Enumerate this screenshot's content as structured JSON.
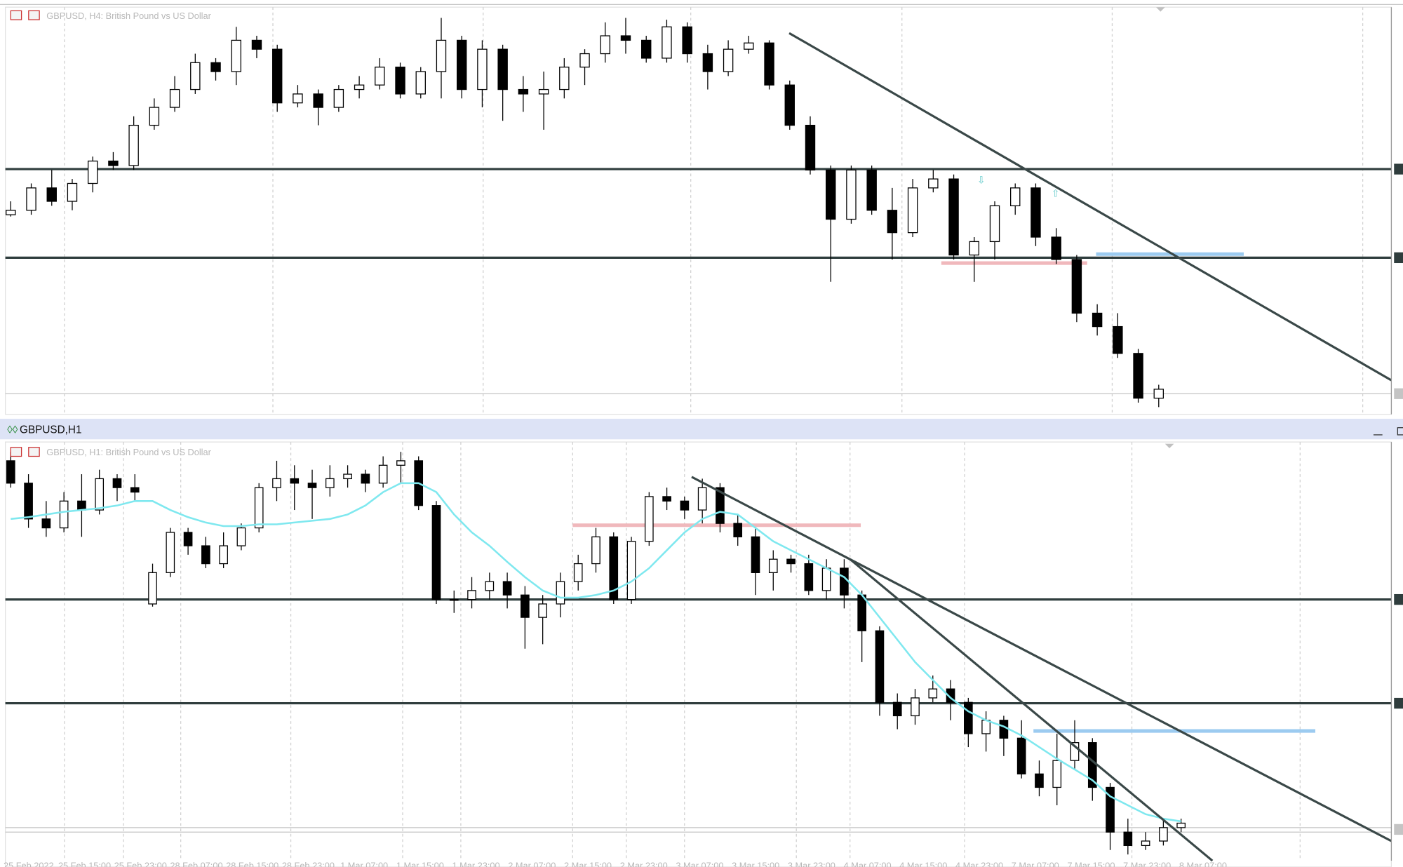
{
  "chart_data": [
    {
      "type": "candlestick",
      "title": "GBPUSD, H4:  British Pound vs US Dollar",
      "up_color": "#ffffff",
      "down_color": "#000000",
      "ylim": [
        1.3,
        1.345
      ],
      "open": [
        1.322,
        1.3225,
        1.325,
        1.3235,
        1.3255,
        1.328,
        1.3275,
        1.332,
        1.334,
        1.336,
        1.339,
        1.338,
        1.3415,
        1.3405,
        1.3345,
        1.3355,
        1.334,
        1.336,
        1.3365,
        1.3385,
        1.3355,
        1.338,
        1.3415,
        1.336,
        1.3405,
        1.336,
        1.3355,
        1.336,
        1.3385,
        1.34,
        1.342,
        1.3415,
        1.3395,
        1.343,
        1.34,
        1.338,
        1.3405,
        1.3412,
        1.3365,
        1.332,
        1.327,
        1.3215,
        1.327,
        1.3225,
        1.32,
        1.325,
        1.326,
        1.3175,
        1.319,
        1.323,
        1.325,
        1.3195,
        1.317,
        1.311,
        1.3095,
        1.3065,
        1.3015
      ],
      "high": [
        1.3235,
        1.3255,
        1.327,
        1.326,
        1.3285,
        1.329,
        1.333,
        1.335,
        1.3375,
        1.34,
        1.3395,
        1.343,
        1.342,
        1.341,
        1.3365,
        1.336,
        1.3365,
        1.3375,
        1.3395,
        1.339,
        1.3385,
        1.344,
        1.342,
        1.3415,
        1.341,
        1.3375,
        1.338,
        1.3395,
        1.3405,
        1.3435,
        1.344,
        1.342,
        1.3438,
        1.3435,
        1.341,
        1.3415,
        1.342,
        1.3415,
        1.337,
        1.333,
        1.3275,
        1.3275,
        1.3275,
        1.325,
        1.326,
        1.327,
        1.3265,
        1.3195,
        1.3235,
        1.3255,
        1.3255,
        1.3205,
        1.3175,
        1.312,
        1.311,
        1.307,
        1.303
      ],
      "low": [
        1.3218,
        1.322,
        1.323,
        1.3225,
        1.3245,
        1.327,
        1.327,
        1.3315,
        1.3335,
        1.3355,
        1.337,
        1.3365,
        1.3395,
        1.3335,
        1.334,
        1.332,
        1.3335,
        1.335,
        1.336,
        1.335,
        1.335,
        1.335,
        1.335,
        1.334,
        1.3325,
        1.3335,
        1.3315,
        1.335,
        1.3365,
        1.339,
        1.34,
        1.339,
        1.339,
        1.339,
        1.336,
        1.3375,
        1.34,
        1.336,
        1.3315,
        1.3265,
        1.3145,
        1.321,
        1.322,
        1.317,
        1.3195,
        1.3245,
        1.317,
        1.3145,
        1.317,
        1.322,
        1.3185,
        1.3165,
        1.31,
        1.3085,
        1.306,
        1.301,
        1.3005
      ],
      "close": [
        1.3225,
        1.325,
        1.3235,
        1.3255,
        1.328,
        1.3275,
        1.332,
        1.334,
        1.336,
        1.339,
        1.338,
        1.3415,
        1.3405,
        1.3345,
        1.3355,
        1.334,
        1.336,
        1.3365,
        1.3385,
        1.3355,
        1.338,
        1.3415,
        1.336,
        1.3405,
        1.336,
        1.3355,
        1.336,
        1.3385,
        1.34,
        1.342,
        1.3415,
        1.3395,
        1.343,
        1.34,
        1.338,
        1.3405,
        1.3412,
        1.3365,
        1.332,
        1.327,
        1.3215,
        1.327,
        1.3225,
        1.32,
        1.325,
        1.326,
        1.3175,
        1.319,
        1.323,
        1.325,
        1.3195,
        1.317,
        1.311,
        1.3095,
        1.3065,
        1.3015,
        1.3025
      ]
    },
    {
      "type": "candlestick",
      "window_title": "GBPUSD,H1",
      "title": "GBPUSD, H1:  British Pound vs US Dollar",
      "up_color": "#ffffff",
      "down_color": "#000000",
      "ylim": [
        1.299,
        1.345
      ],
      "open": [
        1.3435,
        1.341,
        1.337,
        1.336,
        1.339,
        1.338,
        1.3415,
        1.3405,
        1.3275,
        1.331,
        1.3355,
        1.334,
        1.332,
        1.334,
        1.336,
        1.3405,
        1.3415,
        1.341,
        1.3405,
        1.3415,
        1.342,
        1.341,
        1.343,
        1.3435,
        1.3385,
        1.328,
        1.328,
        1.329,
        1.33,
        1.3285,
        1.326,
        1.3275,
        1.33,
        1.332,
        1.335,
        1.328,
        1.3345,
        1.3395,
        1.339,
        1.338,
        1.3405,
        1.3365,
        1.335,
        1.331,
        1.3325,
        1.332,
        1.329,
        1.3315,
        1.3285,
        1.3245,
        1.3165,
        1.315,
        1.317,
        1.318,
        1.3165,
        1.313,
        1.3145,
        1.3125,
        1.3085,
        1.307,
        1.31,
        1.312,
        1.307,
        1.302,
        1.3005,
        1.301,
        1.3025
      ],
      "high": [
        1.3445,
        1.342,
        1.339,
        1.34,
        1.342,
        1.3425,
        1.342,
        1.342,
        1.332,
        1.336,
        1.336,
        1.335,
        1.3355,
        1.3365,
        1.341,
        1.3435,
        1.343,
        1.3425,
        1.343,
        1.343,
        1.3425,
        1.344,
        1.3445,
        1.344,
        1.339,
        1.329,
        1.3305,
        1.331,
        1.331,
        1.3295,
        1.3285,
        1.331,
        1.333,
        1.336,
        1.3355,
        1.335,
        1.34,
        1.3405,
        1.3395,
        1.3415,
        1.341,
        1.3375,
        1.336,
        1.3335,
        1.333,
        1.333,
        1.3325,
        1.3325,
        1.329,
        1.325,
        1.3175,
        1.318,
        1.3195,
        1.319,
        1.317,
        1.3155,
        1.315,
        1.3145,
        1.31,
        1.313,
        1.3145,
        1.3125,
        1.3075,
        1.3035,
        1.302,
        1.3035,
        1.3035
      ],
      "low": [
        1.3405,
        1.336,
        1.335,
        1.3355,
        1.335,
        1.3375,
        1.339,
        1.339,
        1.3272,
        1.3305,
        1.333,
        1.3315,
        1.3315,
        1.3335,
        1.3355,
        1.339,
        1.338,
        1.337,
        1.3395,
        1.3405,
        1.34,
        1.3405,
        1.341,
        1.338,
        1.3275,
        1.3265,
        1.327,
        1.328,
        1.327,
        1.3225,
        1.323,
        1.326,
        1.329,
        1.331,
        1.3275,
        1.3275,
        1.334,
        1.338,
        1.337,
        1.3365,
        1.3355,
        1.334,
        1.3285,
        1.329,
        1.331,
        1.3285,
        1.328,
        1.327,
        1.321,
        1.315,
        1.3135,
        1.314,
        1.3165,
        1.3145,
        1.3115,
        1.311,
        1.3105,
        1.308,
        1.306,
        1.305,
        1.309,
        1.3055,
        1.3,
        1.2995,
        1.3,
        1.3005,
        1.302
      ],
      "close": [
        1.341,
        1.337,
        1.336,
        1.339,
        1.338,
        1.3415,
        1.3405,
        1.34,
        1.331,
        1.3355,
        1.334,
        1.332,
        1.334,
        1.336,
        1.3405,
        1.3415,
        1.341,
        1.3405,
        1.3415,
        1.342,
        1.341,
        1.343,
        1.3435,
        1.3385,
        1.328,
        1.328,
        1.329,
        1.33,
        1.3285,
        1.326,
        1.3275,
        1.33,
        1.332,
        1.335,
        1.328,
        1.3345,
        1.3395,
        1.339,
        1.338,
        1.3405,
        1.3365,
        1.335,
        1.331,
        1.3325,
        1.332,
        1.329,
        1.3315,
        1.3285,
        1.3245,
        1.3165,
        1.315,
        1.317,
        1.318,
        1.3165,
        1.313,
        1.3145,
        1.3125,
        1.3085,
        1.307,
        1.31,
        1.312,
        1.307,
        1.302,
        1.3005,
        1.301,
        1.3025,
        1.303
      ],
      "ma": {
        "color": "#7fe8ef",
        "values": [
          1.337,
          1.3372,
          1.3375,
          1.3378,
          1.338,
          1.3382,
          1.3385,
          1.339,
          1.339,
          1.338,
          1.3372,
          1.3366,
          1.3362,
          1.3362,
          1.3364,
          1.3364,
          1.3366,
          1.3368,
          1.337,
          1.3375,
          1.3385,
          1.34,
          1.341,
          1.341,
          1.34,
          1.3375,
          1.3355,
          1.334,
          1.3322,
          1.3305,
          1.329,
          1.3282,
          1.3282,
          1.3285,
          1.329,
          1.33,
          1.3315,
          1.3335,
          1.3355,
          1.337,
          1.3378,
          1.3375,
          1.336,
          1.3345,
          1.3335,
          1.3325,
          1.3315,
          1.3305,
          1.3285,
          1.326,
          1.3235,
          1.321,
          1.319,
          1.317,
          1.3155,
          1.3145,
          1.3138,
          1.3128,
          1.3115,
          1.3102,
          1.309,
          1.3078,
          1.306,
          1.305,
          1.304,
          1.3035,
          1.3032
        ]
      },
      "x_labels": [
        "25 Feb 2022",
        "25 Feb 15:00",
        "25 Feb 23:00",
        "28 Feb 07:00",
        "28 Feb 15:00",
        "28 Feb 23:00",
        "1 Mar 07:00",
        "1 Mar 15:00",
        "1 Mar 23:00",
        "2 Mar 07:00",
        "2 Mar 15:00",
        "2 Mar 23:00",
        "3 Mar 07:00",
        "3 Mar 15:00",
        "3 Mar 23:00",
        "4 Mar 07:00",
        "4 Mar 15:00",
        "4 Mar 23:00",
        "7 Mar 07:00",
        "7 Mar 15:00",
        "7 Mar 23:00",
        "8 Mar 07:00"
      ]
    }
  ]
}
